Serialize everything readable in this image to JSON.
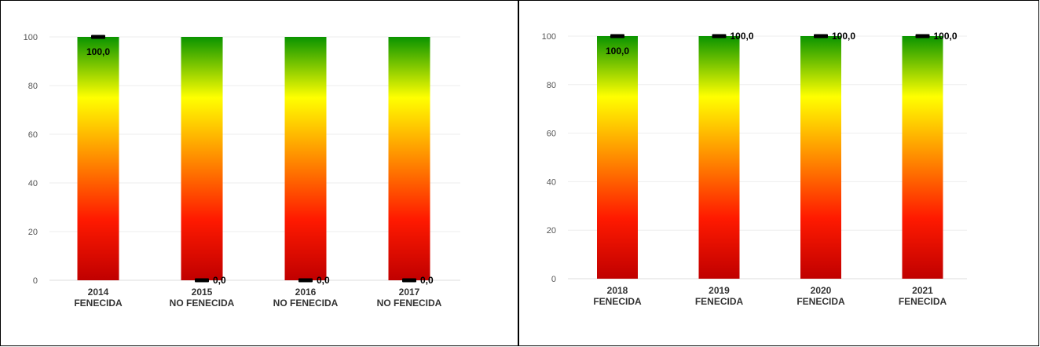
{
  "chart_data": [
    {
      "type": "bar",
      "categories": [
        "2014",
        "2015",
        "2016",
        "2017"
      ],
      "category_status": [
        "FENECIDA",
        "NO FENECIDA",
        "NO FENECIDA",
        "NO FENECIDA"
      ],
      "background_values": [
        100,
        100,
        100,
        100
      ],
      "values": [
        100,
        0,
        0,
        0
      ],
      "data_labels": [
        "100,0",
        "0,0",
        "0,0",
        "0,0"
      ],
      "ylim": [
        0,
        100
      ],
      "yticks": [
        0,
        20,
        40,
        60,
        80,
        100
      ],
      "grid": true,
      "title": "",
      "xlabel": "",
      "ylabel": ""
    },
    {
      "type": "bar",
      "categories": [
        "2018",
        "2019",
        "2020",
        "2021"
      ],
      "category_status": [
        "FENECIDA",
        "FENECIDA",
        "FENECIDA",
        "FENECIDA"
      ],
      "background_values": [
        100,
        100,
        100,
        100
      ],
      "values": [
        100,
        100,
        100,
        100
      ],
      "data_labels": [
        "100,0",
        "100,0",
        "100,0",
        "100,0"
      ],
      "ylim": [
        0,
        100
      ],
      "yticks": [
        0,
        20,
        40,
        60,
        80,
        100
      ],
      "grid": true,
      "title": "",
      "xlabel": "",
      "ylabel": ""
    }
  ],
  "colors": {
    "gradient_top": "#0a9400",
    "gradient_upper": "#ffff00",
    "gradient_mid": "#ff8c00",
    "gradient_lower": "#ff1a00",
    "gradient_bottom": "#c00000",
    "marker": "#000000",
    "grid": "#eeeeee"
  }
}
